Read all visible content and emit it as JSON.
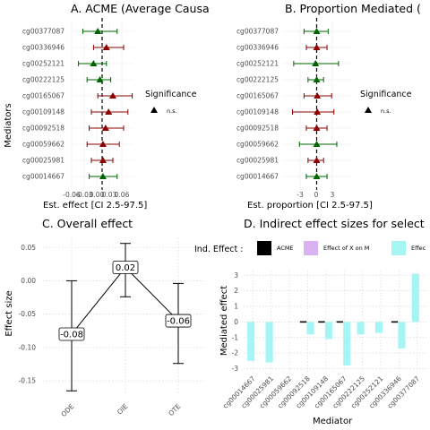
{
  "chart_data": [
    {
      "type": "forest",
      "title": "A. ACME (Average Causa",
      "xlabel": "Est. effect [CI 2.5-97.5]",
      "ylabel": "Mediators",
      "x_ticks": [
        "-0.06",
        "-0.03",
        "0.00",
        "0.03",
        "0.06"
      ],
      "categories": [
        "cg00377087",
        "cg00336946",
        "cg00252121",
        "cg00222125",
        "cg00165067",
        "cg00109148",
        "cg00092518",
        "cg00059662",
        "cg00025981",
        "cg00014667"
      ],
      "estimates": [
        -0.01,
        0.01,
        -0.02,
        -0.005,
        0.025,
        0.015,
        0.008,
        0.002,
        0.002,
        0.002
      ],
      "ci_low": [
        -0.045,
        -0.02,
        -0.055,
        -0.035,
        -0.01,
        -0.025,
        -0.03,
        -0.035,
        -0.025,
        -0.03
      ],
      "ci_high": [
        0.035,
        0.05,
        0.01,
        0.02,
        0.07,
        0.06,
        0.05,
        0.04,
        0.025,
        0.035
      ],
      "colors": [
        "#006400",
        "#8b0000",
        "#006400",
        "#006400",
        "#8b0000",
        "#8b0000",
        "#8b0000",
        "#8b0000",
        "#8b0000",
        "#006400"
      ],
      "xlim": [
        -0.075,
        0.075
      ]
    },
    {
      "type": "forest",
      "title": "B. Proportion Mediated (",
      "xlabel": "Est. proportion [CI 2.5-97.5]",
      "x_ticks": [
        "-3",
        "0",
        "3"
      ],
      "categories": [
        "cg00377087",
        "cg00336946",
        "cg00252121",
        "cg00222125",
        "cg00165067",
        "cg00109148",
        "cg00092518",
        "cg00059662",
        "cg00025981",
        "cg00014667"
      ],
      "estimates": [
        0.0,
        0.0,
        -0.2,
        0.0,
        0.1,
        0.1,
        0.0,
        0.0,
        0.0,
        0.0
      ],
      "ci_low": [
        -2.2,
        -1.8,
        -4.0,
        -1.5,
        -2.2,
        -4.2,
        -1.8,
        -3.0,
        -1.5,
        -1.8
      ],
      "ci_high": [
        2.0,
        1.8,
        3.8,
        1.2,
        2.6,
        3.0,
        1.8,
        3.5,
        1.2,
        1.8
      ],
      "colors": [
        "#006400",
        "#8b0000",
        "#006400",
        "#006400",
        "#8b0000",
        "#8b0000",
        "#8b0000",
        "#006400",
        "#8b0000",
        "#006400"
      ],
      "xlim": [
        -6,
        6
      ]
    },
    {
      "type": "errorbar-line",
      "title": "C. Overall effect",
      "ylabel": "Effect size",
      "categories": [
        "ODE",
        "OIE",
        "OTE"
      ],
      "values": [
        -0.08,
        0.02,
        -0.06
      ],
      "labels": [
        "-0.08",
        "0.02",
        "-0.06"
      ],
      "ci_low": [
        -0.165,
        -0.024,
        -0.124
      ],
      "ci_high": [
        0.0,
        0.056,
        -0.004
      ],
      "y_ticks": [
        0.05,
        0.0,
        -0.05,
        -0.1,
        -0.15
      ],
      "y_tick_labels": [
        "0.05",
        "0.00",
        "-0.05",
        "-0.10",
        "-0.15"
      ],
      "ylim": [
        -0.17,
        0.065
      ]
    },
    {
      "type": "bar",
      "title": "D. Indirect effect sizes for select",
      "xlabel": "Mediator",
      "ylabel": "Mediated effect",
      "categories": [
        "cg00014667",
        "cg00025981",
        "cg00059662",
        "cg00092518",
        "cg00109148",
        "cg00165067",
        "cg00222125",
        "cg00252121",
        "cg00336946",
        "cg00377087"
      ],
      "acme": [
        0.0,
        0.0,
        0.0,
        0.0,
        0.0,
        0.0,
        0.0,
        0.0,
        0.0,
        0.0
      ],
      "x_on_m": [
        0,
        0,
        0,
        0,
        0,
        0,
        0,
        0,
        0,
        0
      ],
      "effect_m_on_y": [
        -2.5,
        -2.6,
        0.0,
        -0.8,
        -1.1,
        -2.8,
        -0.8,
        -0.7,
        -1.7,
        3.1
      ],
      "y_ticks": [
        3,
        2,
        1,
        0,
        -1,
        -2,
        -3
      ],
      "ylim": [
        -3.2,
        3.3
      ]
    }
  ],
  "legendA": {
    "title": "Significance",
    "label": "n.s."
  },
  "legendB": {
    "title": "Significance",
    "label": "n.s."
  },
  "legendD": {
    "title": "Ind. Effect :",
    "items": [
      {
        "label": "ACME",
        "color": "#000000"
      },
      {
        "label": "Effect of X on M",
        "color": "#d9b3f0"
      },
      {
        "label": "Effec",
        "color": "#a6f5f5"
      }
    ]
  }
}
